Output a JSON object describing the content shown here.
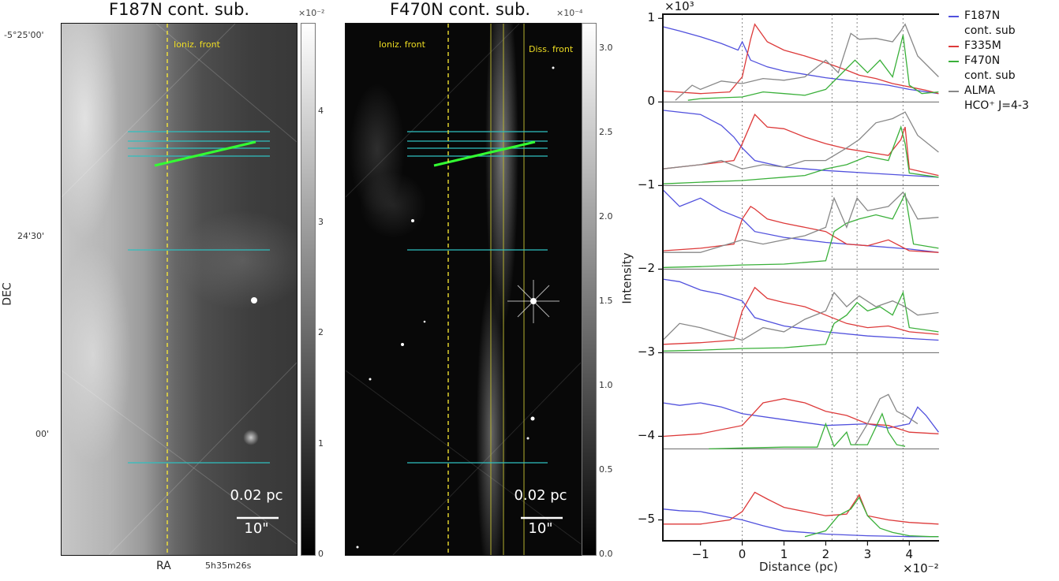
{
  "left_panel": {
    "title": "F187N cont. sub.",
    "multiplier": "×10⁻²",
    "annotation": "Ioniz. front",
    "scalebar": {
      "top": "0.02 pc",
      "bottom": "10\""
    },
    "colorbar_ticks": [
      "0",
      "1",
      "2",
      "3",
      "4"
    ],
    "colorbar_range": [
      0,
      4.8
    ],
    "dec_ticks": [
      "-5°25'00'",
      "24'30'",
      "00'"
    ],
    "dec_label": "DEC",
    "ra_label": "RA",
    "ra_tick": "5h35m26s"
  },
  "middle_panel": {
    "title": "F470N cont. sub.",
    "multiplier": "×10⁻⁴",
    "annotation_left": "Ioniz. front",
    "annotation_right": "Diss. front",
    "scalebar": {
      "top": "0.02 pc",
      "bottom": "10\""
    },
    "colorbar_ticks": [
      "0.0",
      "0.5",
      "1.0",
      "1.5",
      "2.0",
      "2.5",
      "3.0"
    ],
    "colorbar_range": [
      0,
      3.15
    ]
  },
  "chart_data": {
    "type": "line",
    "ylabel": "Intensity",
    "xlabel": "Distance (pc)",
    "x_multiplier": "×10⁻²",
    "y_multiplier": "×10³",
    "xlim": [
      -1.9,
      4.75
    ],
    "ylim": [
      -5.25,
      1.05
    ],
    "x_ticks": [
      -1,
      0,
      1,
      2,
      3,
      4
    ],
    "x_tick_labels": [
      "−1",
      "0",
      "1",
      "2",
      "3",
      "4"
    ],
    "y_ticks": [
      1,
      0,
      -1,
      -2,
      -3,
      -4,
      -5
    ],
    "y_tick_labels": [
      "1",
      "0",
      "−1",
      "−2",
      "−3",
      "−4",
      "−5"
    ],
    "vlines_x": [
      0,
      2.15,
      2.75,
      3.85
    ],
    "baselines_y": [
      0,
      -1,
      -2,
      -3,
      -4.15
    ],
    "legend": [
      {
        "name": "F187N",
        "sub": "cont. sub",
        "color": "#5050dd"
      },
      {
        "name": "F335M",
        "sub": "",
        "color": "#dd3a3a"
      },
      {
        "name": "F470N",
        "sub": "cont. sub",
        "color": "#3ab03a"
      },
      {
        "name": "ALMA",
        "sub": "HCO⁺ J=4-3",
        "color": "#888888"
      }
    ],
    "profiles": [
      {
        "offset": 0,
        "series": [
          {
            "name": "F187N",
            "color": "#5050dd",
            "x": [
              -1.9,
              -1.5,
              -1,
              -0.5,
              -0.1,
              0,
              0.2,
              0.6,
              1,
              1.5,
              2,
              2.5,
              3,
              3.5,
              4,
              4.7
            ],
            "y": [
              0.9,
              0.85,
              0.78,
              0.7,
              0.62,
              0.72,
              0.5,
              0.42,
              0.37,
              0.33,
              0.29,
              0.26,
              0.23,
              0.2,
              0.15,
              0.1
            ]
          },
          {
            "name": "F335M",
            "color": "#dd3a3a",
            "x": [
              -1.9,
              -1,
              -0.3,
              0,
              0.2,
              0.3,
              0.6,
              1,
              1.5,
              2,
              2.5,
              2.8,
              3.2,
              3.6,
              4,
              4.4,
              4.7
            ],
            "y": [
              0.13,
              0.1,
              0.12,
              0.3,
              0.75,
              0.93,
              0.72,
              0.62,
              0.55,
              0.47,
              0.38,
              0.32,
              0.28,
              0.22,
              0.18,
              0.14,
              0.1
            ]
          },
          {
            "name": "F470N",
            "color": "#3ab03a",
            "x": [
              -1.3,
              -1,
              -0.5,
              0,
              0.5,
              1,
              1.5,
              2,
              2.3,
              2.7,
              3,
              3.3,
              3.6,
              3.85,
              4,
              4.3,
              4.7
            ],
            "y": [
              0.02,
              0.04,
              0.05,
              0.06,
              0.12,
              0.1,
              0.08,
              0.15,
              0.3,
              0.5,
              0.35,
              0.5,
              0.3,
              0.8,
              0.2,
              0.1,
              0.12
            ]
          },
          {
            "name": "ALMA",
            "color": "#888888",
            "x": [
              -1.6,
              -1.2,
              -1,
              -0.5,
              0,
              0.5,
              1,
              1.5,
              2,
              2.3,
              2.6,
              2.8,
              3.2,
              3.6,
              3.8,
              3.9,
              4.2,
              4.7
            ],
            "y": [
              0.02,
              0.2,
              0.15,
              0.25,
              0.22,
              0.28,
              0.26,
              0.3,
              0.5,
              0.35,
              0.82,
              0.75,
              0.76,
              0.72,
              0.85,
              0.93,
              0.55,
              0.3
            ]
          }
        ]
      },
      {
        "offset": -1,
        "series": [
          {
            "name": "F187N",
            "color": "#5050dd",
            "x": [
              -1.9,
              -1,
              -0.5,
              -0.2,
              0,
              0.3,
              1,
              2,
              3,
              4,
              4.7
            ],
            "y": [
              0.9,
              0.85,
              0.72,
              0.58,
              0.45,
              0.3,
              0.22,
              0.18,
              0.15,
              0.12,
              0.1
            ]
          },
          {
            "name": "F335M",
            "color": "#dd3a3a",
            "x": [
              -1.9,
              -1,
              -0.2,
              0,
              0.3,
              0.6,
              1,
              1.5,
              2,
              2.5,
              3,
              3.5,
              3.8,
              3.9,
              4,
              4.7
            ],
            "y": [
              0.2,
              0.25,
              0.3,
              0.5,
              0.85,
              0.7,
              0.68,
              0.58,
              0.5,
              0.44,
              0.4,
              0.36,
              0.55,
              0.7,
              0.2,
              0.12
            ]
          },
          {
            "name": "F470N",
            "color": "#3ab03a",
            "x": [
              -1.9,
              -1,
              0,
              0.5,
              1,
              1.5,
              2,
              2.5,
              3,
              3.5,
              3.8,
              3.9,
              4,
              4.7
            ],
            "y": [
              0.02,
              0.04,
              0.06,
              0.08,
              0.1,
              0.12,
              0.2,
              0.25,
              0.35,
              0.3,
              0.7,
              0.5,
              0.15,
              0.1
            ]
          },
          {
            "name": "ALMA",
            "color": "#888888",
            "x": [
              -1.9,
              -1,
              -0.5,
              0,
              0.5,
              1,
              1.5,
              2,
              2.5,
              2.8,
              3.2,
              3.6,
              3.9,
              4.2,
              4.7
            ],
            "y": [
              0.2,
              0.25,
              0.3,
              0.2,
              0.25,
              0.22,
              0.3,
              0.3,
              0.45,
              0.55,
              0.75,
              0.8,
              0.88,
              0.6,
              0.4
            ]
          }
        ]
      },
      {
        "offset": -2,
        "series": [
          {
            "name": "F187N",
            "color": "#5050dd",
            "x": [
              -1.9,
              -1.5,
              -1,
              -0.5,
              0,
              0.3,
              1,
              2,
              3,
              4,
              4.7
            ],
            "y": [
              0.95,
              0.75,
              0.85,
              0.7,
              0.6,
              0.45,
              0.38,
              0.32,
              0.28,
              0.24,
              0.2
            ]
          },
          {
            "name": "F335M",
            "color": "#dd3a3a",
            "x": [
              -1.9,
              -1,
              -0.2,
              0,
              0.2,
              0.3,
              0.6,
              1,
              1.5,
              2,
              2.5,
              3,
              3.5,
              4,
              4.7
            ],
            "y": [
              0.22,
              0.25,
              0.3,
              0.6,
              0.75,
              0.72,
              0.6,
              0.55,
              0.5,
              0.45,
              0.3,
              0.28,
              0.35,
              0.22,
              0.2
            ]
          },
          {
            "name": "F470N",
            "color": "#3ab03a",
            "x": [
              -1.9,
              -1,
              0,
              1,
              2,
              2.2,
              2.5,
              2.8,
              3.2,
              3.6,
              3.9,
              4.1,
              4.7
            ],
            "y": [
              0.02,
              0.03,
              0.05,
              0.06,
              0.1,
              0.45,
              0.55,
              0.6,
              0.65,
              0.6,
              0.9,
              0.3,
              0.25
            ]
          },
          {
            "name": "ALMA",
            "color": "#888888",
            "x": [
              -1.9,
              -1,
              0,
              0.5,
              1,
              1.5,
              2,
              2.2,
              2.5,
              2.75,
              3,
              3.5,
              3.85,
              4.2,
              4.7
            ],
            "y": [
              0.2,
              0.2,
              0.35,
              0.3,
              0.35,
              0.4,
              0.5,
              0.85,
              0.5,
              0.85,
              0.7,
              0.75,
              0.92,
              0.6,
              0.62
            ]
          }
        ]
      },
      {
        "offset": -3,
        "series": [
          {
            "name": "F187N",
            "color": "#5050dd",
            "x": [
              -1.9,
              -1.5,
              -1,
              -0.5,
              0,
              0.3,
              1,
              2,
              3,
              4,
              4.7
            ],
            "y": [
              0.88,
              0.85,
              0.75,
              0.7,
              0.62,
              0.42,
              0.32,
              0.25,
              0.2,
              0.17,
              0.15
            ]
          },
          {
            "name": "F335M",
            "color": "#dd3a3a",
            "x": [
              -1.9,
              -1,
              -0.2,
              0,
              0.3,
              0.6,
              1,
              1.5,
              2,
              2.5,
              3,
              3.5,
              4,
              4.7
            ],
            "y": [
              0.1,
              0.12,
              0.15,
              0.5,
              0.78,
              0.65,
              0.6,
              0.55,
              0.45,
              0.35,
              0.3,
              0.32,
              0.25,
              0.22
            ]
          },
          {
            "name": "F470N",
            "color": "#3ab03a",
            "x": [
              -1.9,
              -1,
              0,
              1,
              2,
              2.2,
              2.5,
              2.75,
              3,
              3.3,
              3.6,
              3.85,
              4,
              4.7
            ],
            "y": [
              0.02,
              0.03,
              0.05,
              0.06,
              0.1,
              0.35,
              0.45,
              0.6,
              0.5,
              0.55,
              0.45,
              0.72,
              0.3,
              0.25
            ]
          },
          {
            "name": "ALMA",
            "color": "#888888",
            "x": [
              -1.9,
              -1.5,
              -1,
              0,
              0.5,
              1,
              1.5,
              2,
              2.2,
              2.5,
              2.8,
              3.2,
              3.6,
              3.9,
              4.2,
              4.7
            ],
            "y": [
              0.15,
              0.35,
              0.3,
              0.15,
              0.3,
              0.25,
              0.4,
              0.5,
              0.72,
              0.55,
              0.68,
              0.55,
              0.62,
              0.55,
              0.45,
              0.48
            ]
          }
        ]
      },
      {
        "offset": -4.15,
        "series": [
          {
            "name": "F187N",
            "color": "#5050dd",
            "x": [
              -1.9,
              -1.5,
              -1,
              -0.5,
              0,
              1,
              2,
              3,
              3.5,
              4,
              4.2,
              4.4,
              4.7
            ],
            "y": [
              0.55,
              0.52,
              0.55,
              0.5,
              0.42,
              0.35,
              0.28,
              0.3,
              0.25,
              0.3,
              0.5,
              0.4,
              0.2
            ]
          },
          {
            "name": "F335M",
            "color": "#dd3a3a",
            "x": [
              -1.9,
              -1,
              0,
              0.5,
              1,
              1.5,
              2,
              2.5,
              3,
              3.5,
              4,
              4.7
            ],
            "y": [
              0.15,
              0.18,
              0.28,
              0.55,
              0.6,
              0.55,
              0.45,
              0.4,
              0.3,
              0.28,
              0.2,
              0.18
            ]
          },
          {
            "name": "F470N",
            "color": "#3ab03a",
            "x": [
              -0.8,
              0,
              1,
              1.8,
              2,
              2.2,
              2.5,
              2.6,
              3,
              3.35,
              3.5,
              3.7,
              3.9
            ],
            "y": [
              0,
              0.01,
              0.02,
              0.02,
              0.3,
              0.03,
              0.2,
              0.05,
              0.05,
              0.42,
              0.2,
              0.05,
              0.03
            ]
          },
          {
            "name": "ALMA",
            "color": "#888888",
            "x": [
              2.7,
              3,
              3.3,
              3.5,
              3.7,
              3.9,
              4.2
            ],
            "y": [
              0.05,
              0.3,
              0.6,
              0.65,
              0.45,
              0.4,
              0.3
            ]
          }
        ]
      },
      {
        "offset": -5.25,
        "series": [
          {
            "name": "F187N",
            "color": "#5050dd",
            "x": [
              -1.9,
              -1.5,
              -1,
              -0.5,
              0,
              0.5,
              1,
              2,
              3,
              4,
              4.7
            ],
            "y": [
              0.38,
              0.36,
              0.35,
              0.3,
              0.25,
              0.18,
              0.12,
              0.08,
              0.06,
              0.05,
              0.05
            ]
          },
          {
            "name": "F335M",
            "color": "#dd3a3a",
            "x": [
              -1.9,
              -1,
              -0.3,
              0,
              0.3,
              0.6,
              1,
              1.5,
              2,
              2.5,
              2.8,
              3,
              3.5,
              4,
              4.7
            ],
            "y": [
              0.2,
              0.2,
              0.25,
              0.35,
              0.58,
              0.5,
              0.4,
              0.35,
              0.3,
              0.32,
              0.55,
              0.3,
              0.25,
              0.22,
              0.2
            ]
          },
          {
            "name": "F470N",
            "color": "#3ab03a",
            "x": [
              1.5,
              2,
              2.3,
              2.6,
              2.8,
              3,
              3.3,
              3.6,
              4,
              4.5,
              4.7
            ],
            "y": [
              0.05,
              0.12,
              0.3,
              0.38,
              0.52,
              0.3,
              0.15,
              0.1,
              0.06,
              0.05,
              0.05
            ]
          }
        ]
      }
    ]
  }
}
